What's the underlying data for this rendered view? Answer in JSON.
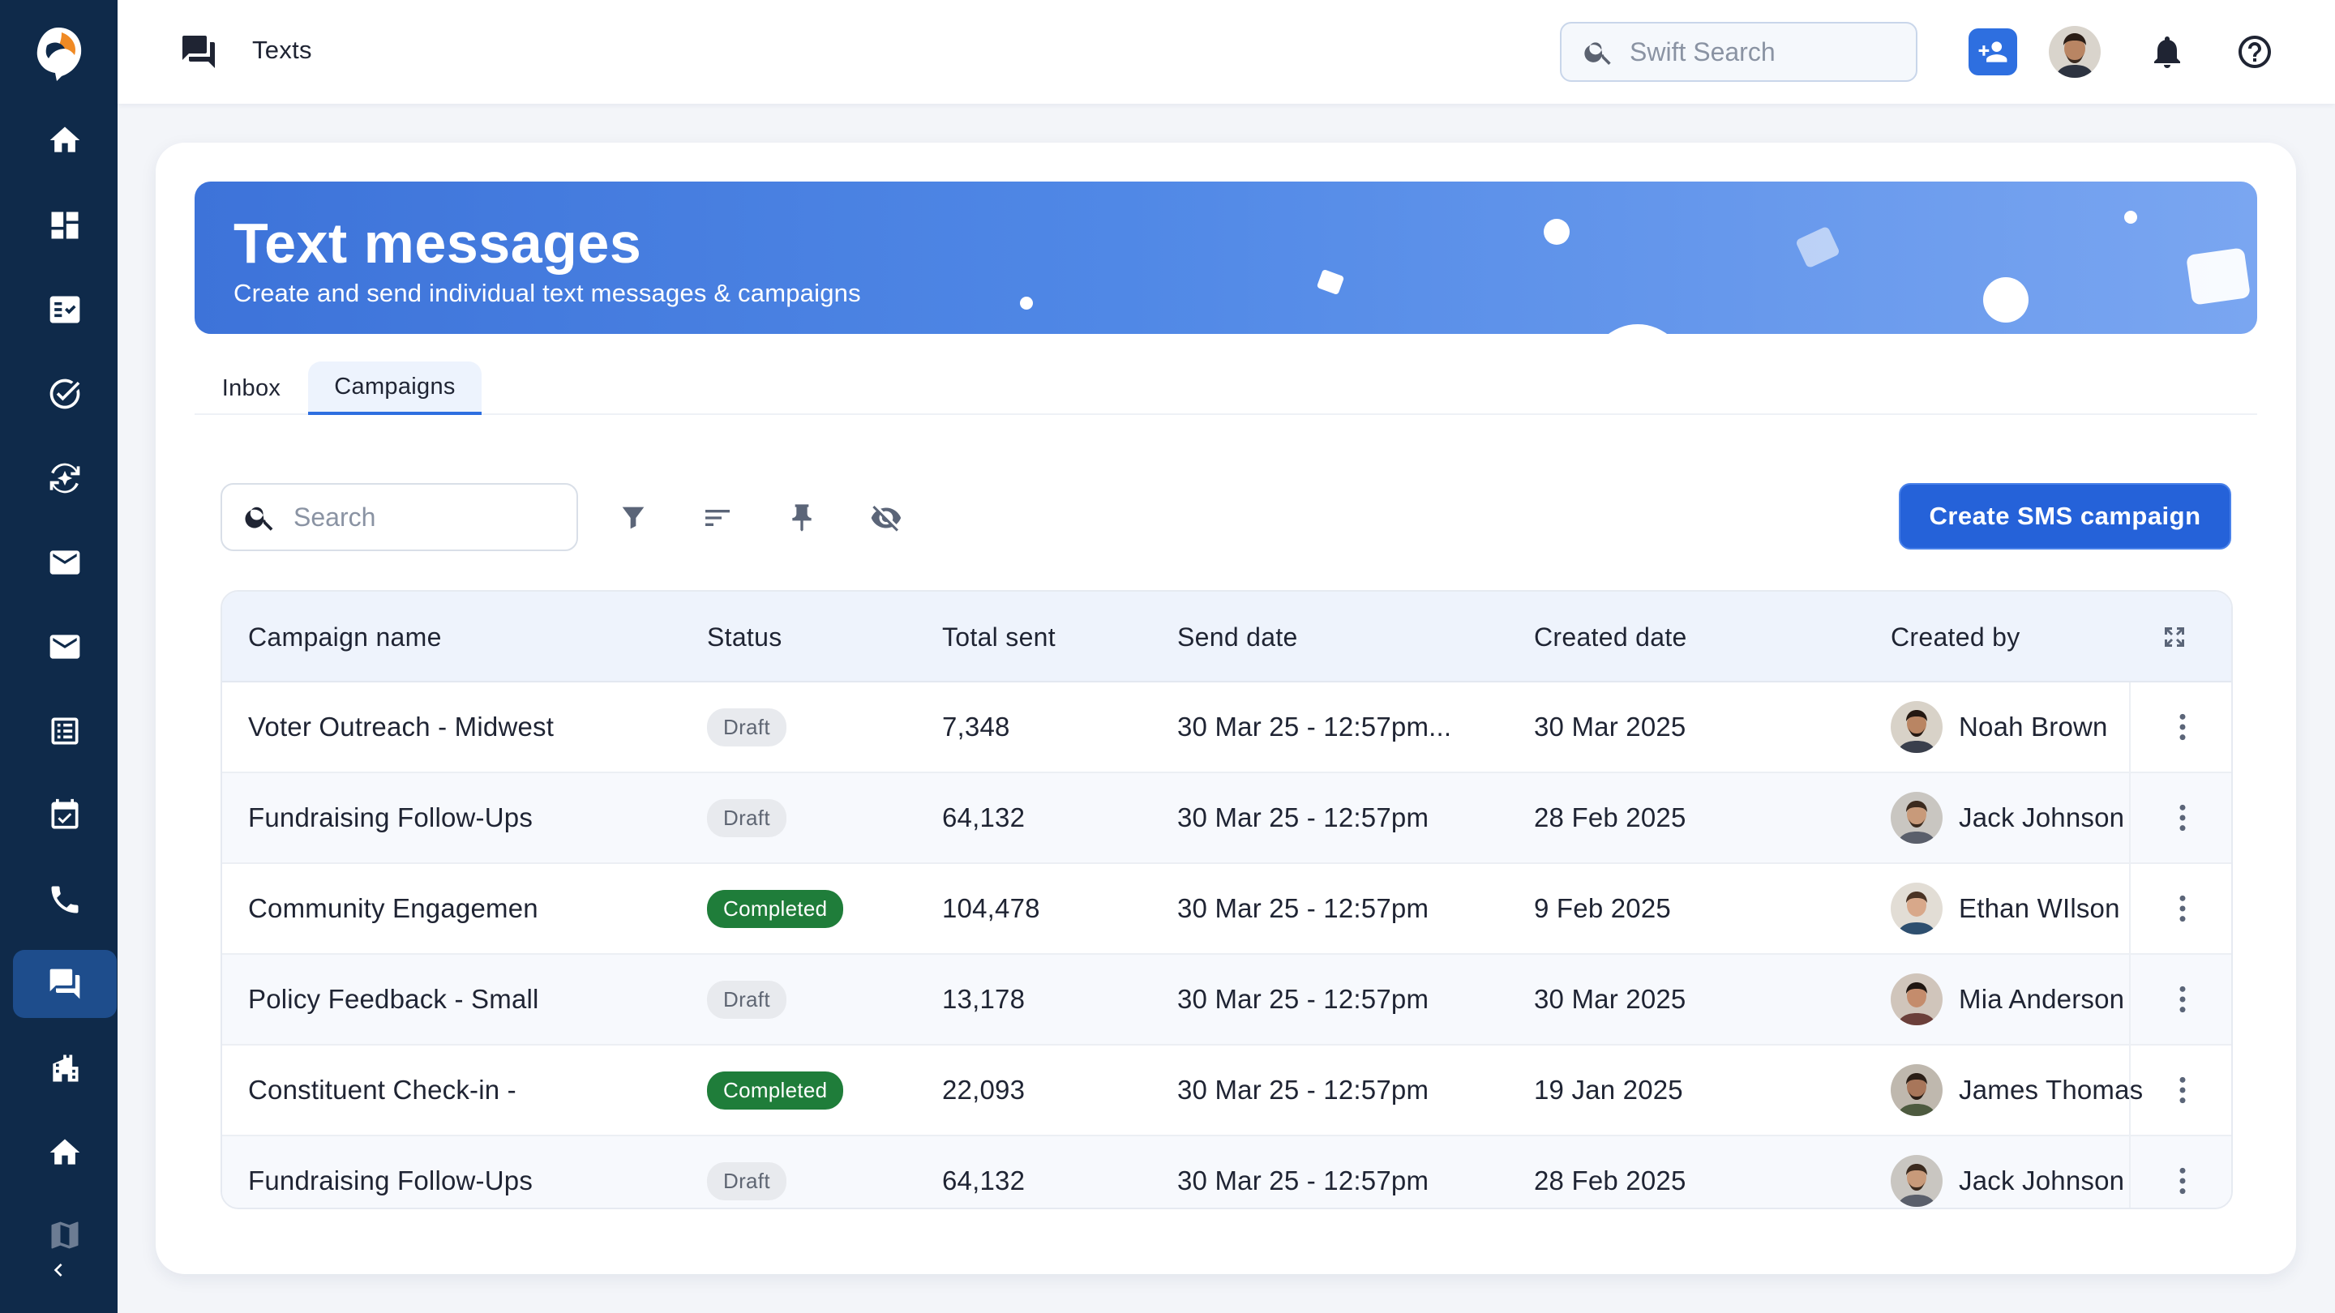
{
  "app": {
    "page_title": "Texts"
  },
  "topbar": {
    "search_placeholder": "Swift Search",
    "icons": [
      "chat-icon",
      "search-icon",
      "add-user-icon",
      "bell-icon",
      "help-icon"
    ]
  },
  "sidebar": {
    "items": [
      {
        "name": "home-icon",
        "active": false
      },
      {
        "name": "dashboard-icon",
        "active": false
      },
      {
        "name": "tasks-board-icon",
        "active": false
      },
      {
        "name": "check-circle-icon",
        "active": false
      },
      {
        "name": "sparkle-sync-icon",
        "active": false
      },
      {
        "name": "mail-icon",
        "active": false
      },
      {
        "name": "mail-alt-icon",
        "active": false
      },
      {
        "name": "list-icon",
        "active": false
      },
      {
        "name": "calendar-check-icon",
        "active": false
      },
      {
        "name": "phone-icon",
        "active": false
      },
      {
        "name": "texts-icon",
        "active": true
      },
      {
        "name": "buildings-icon",
        "active": false
      },
      {
        "name": "house-icon",
        "active": false
      },
      {
        "name": "map-icon",
        "active": false
      }
    ]
  },
  "banner": {
    "title": "Text messages",
    "subtitle": "Create and send individual text messages & campaigns"
  },
  "tabs": [
    {
      "label": "Inbox",
      "active": false
    },
    {
      "label": "Campaigns",
      "active": true
    }
  ],
  "toolbar": {
    "search_placeholder": "Search",
    "create_label": "Create SMS campaign"
  },
  "table": {
    "columns": [
      "Campaign name",
      "Status",
      "Total sent",
      "Send date",
      "Created date",
      "Created by"
    ],
    "rows": [
      {
        "name": "Voter Outreach - Midwest",
        "status": "Draft",
        "total": "7,348",
        "send_date": "30 Mar 25 - 12:57pm...",
        "created": "30 Mar 2025",
        "by": "Noah Brown"
      },
      {
        "name": "Fundraising Follow-Ups",
        "status": "Draft",
        "total": "64,132",
        "send_date": "30 Mar 25 - 12:57pm",
        "created": "28 Feb  2025",
        "by": "Jack Johnson"
      },
      {
        "name": "Community Engagemen",
        "status": "Completed",
        "total": "104,478",
        "send_date": "30 Mar 25 - 12:57pm",
        "created": "9 Feb 2025",
        "by": "Ethan WIlson"
      },
      {
        "name": "Policy Feedback - Small",
        "status": "Draft",
        "total": "13,178",
        "send_date": "30 Mar 25 - 12:57pm",
        "created": "30 Mar 2025",
        "by": "Mia Anderson"
      },
      {
        "name": "Constituent Check-in -",
        "status": "Completed",
        "total": "22,093",
        "send_date": "30 Mar 25 - 12:57pm",
        "created": "19 Jan 2025",
        "by": "James Thomas"
      },
      {
        "name": "Fundraising Follow-Ups",
        "status": "Draft",
        "total": "64,132",
        "send_date": "30 Mar 25 - 12:57pm",
        "created": "28 Feb  2025",
        "by": "Jack Johnson"
      }
    ]
  },
  "colors": {
    "sidebar_bg": "#0f2a4a",
    "accent": "#2562d9",
    "completed_badge": "#1f7d3a",
    "draft_badge": "#e8eaee"
  }
}
